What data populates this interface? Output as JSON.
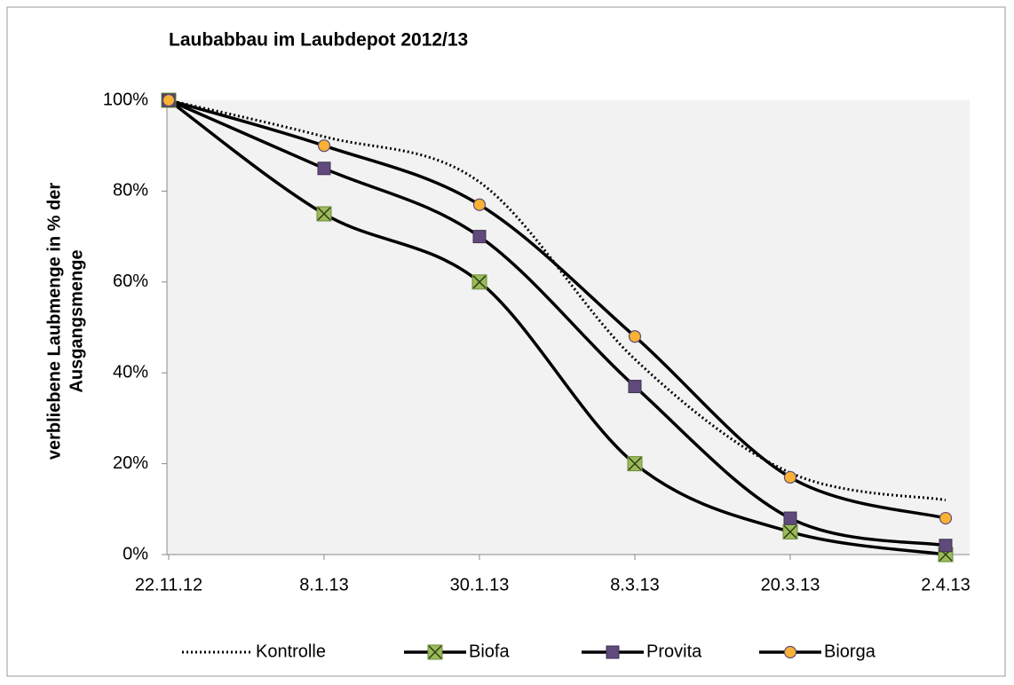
{
  "chart_data": {
    "type": "line",
    "title": "Laubabbau im Laubdepot 2012/13",
    "ylabel": [
      "verbliebene Laubmenge in % der",
      "Ausgangsmenge"
    ],
    "categories": [
      "22.11.12",
      "8.1.13",
      "30.1.13",
      "8.3.13",
      "20.3.13",
      "2.4.13"
    ],
    "series": [
      {
        "name": "Kontrolle",
        "color": "#000000",
        "line_style": "dotted",
        "marker": "none",
        "values": [
          100,
          92,
          82,
          43,
          18,
          12
        ]
      },
      {
        "name": "Biofa",
        "color": "#9bbb59",
        "line_style": "solid",
        "marker": "x-square",
        "values": [
          100,
          75,
          60,
          20,
          5,
          0
        ]
      },
      {
        "name": "Provita",
        "color": "#604a7b",
        "line_style": "solid",
        "marker": "square",
        "values": [
          100,
          85,
          70,
          37,
          8,
          2
        ]
      },
      {
        "name": "Biorga",
        "color": "#f9b233",
        "line_style": "solid",
        "marker": "circle",
        "values": [
          100,
          90,
          77,
          48,
          17,
          8
        ]
      }
    ],
    "line_color": "#000000",
    "smooth": true,
    "ylim": [
      0,
      100
    ],
    "yticks": [
      {
        "value": 0,
        "label": "0%"
      },
      {
        "value": 20,
        "label": "20%"
      },
      {
        "value": 40,
        "label": "40%"
      },
      {
        "value": 60,
        "label": "60%"
      },
      {
        "value": 80,
        "label": "80%"
      },
      {
        "value": 100,
        "label": "100%"
      }
    ],
    "legend": "bottom"
  }
}
